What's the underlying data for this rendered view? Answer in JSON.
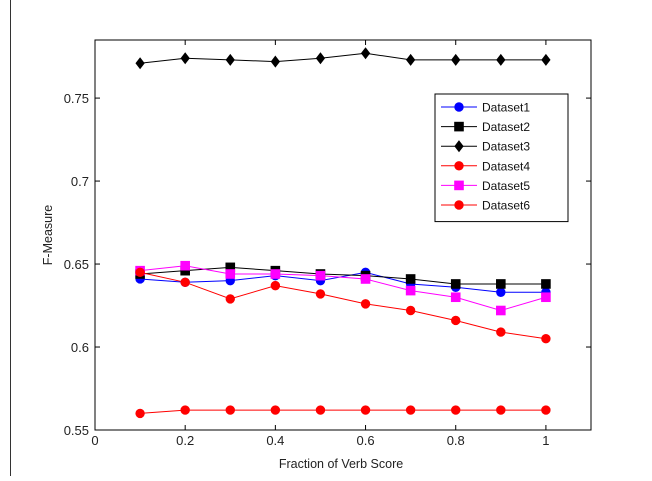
{
  "chart_data": {
    "type": "line",
    "title": "",
    "xlabel": "Fraction of Verb Score",
    "ylabel": "F-Measure",
    "xlim": [
      0,
      1.1
    ],
    "ylim": [
      0.55,
      0.785
    ],
    "xticks": [
      0,
      0.2,
      0.4,
      0.6,
      0.8,
      1
    ],
    "xtick_labels": [
      "0",
      "0.2",
      "0.4",
      "0.6",
      "0.8",
      "1"
    ],
    "yticks": [
      0.55,
      0.6,
      0.65,
      0.7,
      0.75
    ],
    "ytick_labels": [
      "0.55",
      "0.6",
      "0.65",
      "0.7",
      "0.75"
    ],
    "grid": false,
    "legend_position": "top-right",
    "x": [
      0.1,
      0.2,
      0.3,
      0.4,
      0.5,
      0.6,
      0.7,
      0.8,
      0.9,
      1.0
    ],
    "series": [
      {
        "name": "Dataset1",
        "color": "#0000ff",
        "marker": "circle",
        "values": [
          0.641,
          0.639,
          0.64,
          0.643,
          0.64,
          0.645,
          0.638,
          0.636,
          0.633,
          0.633
        ]
      },
      {
        "name": "Dataset2",
        "color": "#000000",
        "marker": "square",
        "values": [
          0.644,
          0.646,
          0.648,
          0.646,
          0.644,
          0.643,
          0.641,
          0.638,
          0.638,
          0.638
        ]
      },
      {
        "name": "Dataset3",
        "color": "#000000",
        "marker": "diamond",
        "values": [
          0.771,
          0.774,
          0.773,
          0.772,
          0.774,
          0.777,
          0.773,
          0.773,
          0.773,
          0.773
        ]
      },
      {
        "name": "Dataset4",
        "color": "#ff0000",
        "marker": "circle",
        "values": [
          0.56,
          0.562,
          0.562,
          0.562,
          0.562,
          0.562,
          0.562,
          0.562,
          0.562,
          0.562
        ]
      },
      {
        "name": "Dataset5",
        "color": "#ff00ff",
        "marker": "square",
        "values": [
          0.646,
          0.649,
          0.644,
          0.644,
          0.643,
          0.641,
          0.634,
          0.63,
          0.622,
          0.63
        ]
      },
      {
        "name": "Dataset6",
        "color": "#ff0000",
        "marker": "circle",
        "values": [
          0.645,
          0.639,
          0.629,
          0.637,
          0.632,
          0.626,
          0.622,
          0.616,
          0.609,
          0.605
        ]
      }
    ]
  }
}
